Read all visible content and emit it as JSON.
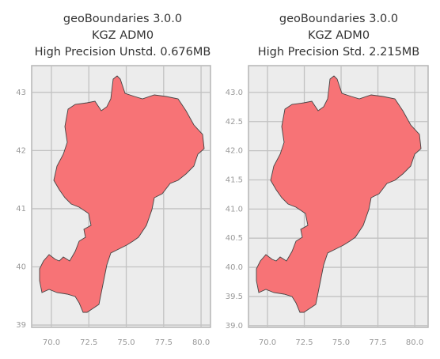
{
  "chart_data": [
    {
      "type": "map",
      "title": [
        "geoBoundaries 3.0.0",
        "KGZ ADM0",
        "High Precision Unstd. 0.676MB"
      ],
      "xlim": [
        68.68,
        80.63
      ],
      "ylim": [
        38.96,
        43.46
      ],
      "xticks": [
        {
          "value": 70,
          "label": "70.0"
        },
        {
          "value": 72.5,
          "label": "72.5"
        },
        {
          "value": 75,
          "label": "75.0"
        },
        {
          "value": 77.5,
          "label": "77.5"
        },
        {
          "value": 80,
          "label": "80.0"
        }
      ],
      "yticks": [
        39,
        40,
        41,
        42,
        43
      ],
      "grid": true,
      "color": "#f77376"
    },
    {
      "type": "map",
      "title": [
        "geoBoundaries 3.0.0",
        "KGZ ADM0",
        "High Precision Std. 2.215MB"
      ],
      "xlim": [
        68.71,
        80.91
      ],
      "ylim": [
        38.97,
        43.46
      ],
      "xticks": [
        {
          "value": 70,
          "label": "70.0"
        },
        {
          "value": 72.5,
          "label": "72.5"
        },
        {
          "value": 75,
          "label": "75.0"
        },
        {
          "value": 77.5,
          "label": "77.5"
        },
        {
          "value": 80,
          "label": "80.0"
        }
      ],
      "yticks": [
        {
          "value": 39,
          "label": "39.0"
        },
        39.5,
        {
          "value": 40,
          "label": "40.0"
        },
        40.5,
        {
          "value": 41,
          "label": "41.0"
        },
        41.5,
        {
          "value": 42,
          "label": "42.0"
        },
        42.5,
        {
          "value": 43,
          "label": "43.0"
        }
      ],
      "grid": true,
      "color": "#f77376"
    }
  ]
}
